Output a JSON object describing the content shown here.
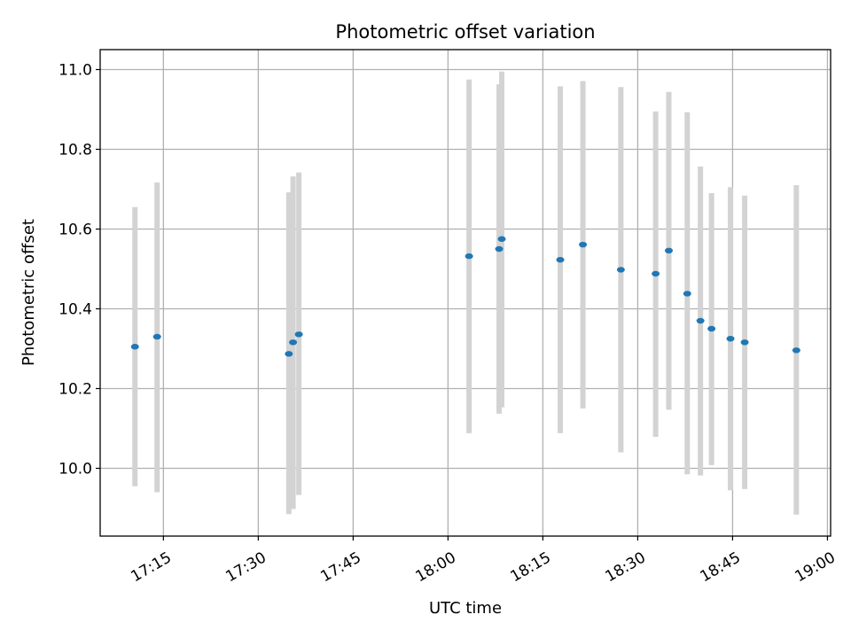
{
  "chart_data": {
    "type": "scatter",
    "title": "Photometric offset variation",
    "xlabel": "UTC time",
    "ylabel": "Photometric offset",
    "grid": true,
    "xlim": [
      "17:05:00",
      "19:00:30"
    ],
    "ylim": [
      9.83,
      11.05
    ],
    "xticks": [
      "17:15",
      "17:30",
      "17:45",
      "18:00",
      "18:15",
      "18:30",
      "18:45",
      "19:00"
    ],
    "yticks": [
      "10.0",
      "10.2",
      "10.4",
      "10.6",
      "10.8",
      "11.0"
    ],
    "point_color": "#1f77b4",
    "errorbar_color": "#d3d3d3",
    "points": [
      {
        "t": "17:10:30",
        "y": 10.305,
        "low": 9.955,
        "high": 10.655
      },
      {
        "t": "17:14:00",
        "y": 10.33,
        "low": 9.94,
        "high": 10.717
      },
      {
        "t": "17:34:50",
        "y": 10.287,
        "low": 9.885,
        "high": 10.692
      },
      {
        "t": "17:35:30",
        "y": 10.316,
        "low": 9.898,
        "high": 10.732
      },
      {
        "t": "17:36:25",
        "y": 10.336,
        "low": 9.933,
        "high": 10.742
      },
      {
        "t": "18:03:20",
        "y": 10.532,
        "low": 10.088,
        "high": 10.975
      },
      {
        "t": "18:08:05",
        "y": 10.55,
        "low": 10.137,
        "high": 10.963
      },
      {
        "t": "18:08:30",
        "y": 10.575,
        "low": 10.153,
        "high": 10.995
      },
      {
        "t": "18:17:45",
        "y": 10.523,
        "low": 10.088,
        "high": 10.958
      },
      {
        "t": "18:21:20",
        "y": 10.561,
        "low": 10.15,
        "high": 10.971
      },
      {
        "t": "18:27:20",
        "y": 10.498,
        "low": 10.04,
        "high": 10.956
      },
      {
        "t": "18:32:50",
        "y": 10.488,
        "low": 10.079,
        "high": 10.895
      },
      {
        "t": "18:34:55",
        "y": 10.546,
        "low": 10.147,
        "high": 10.944
      },
      {
        "t": "18:37:50",
        "y": 10.438,
        "low": 9.985,
        "high": 10.893
      },
      {
        "t": "18:39:55",
        "y": 10.37,
        "low": 9.982,
        "high": 10.757
      },
      {
        "t": "18:41:40",
        "y": 10.35,
        "low": 10.008,
        "high": 10.69
      },
      {
        "t": "18:44:40",
        "y": 10.325,
        "low": 9.945,
        "high": 10.705
      },
      {
        "t": "18:46:55",
        "y": 10.316,
        "low": 9.948,
        "high": 10.684
      },
      {
        "t": "18:55:05",
        "y": 10.296,
        "low": 9.884,
        "high": 10.71
      }
    ]
  }
}
